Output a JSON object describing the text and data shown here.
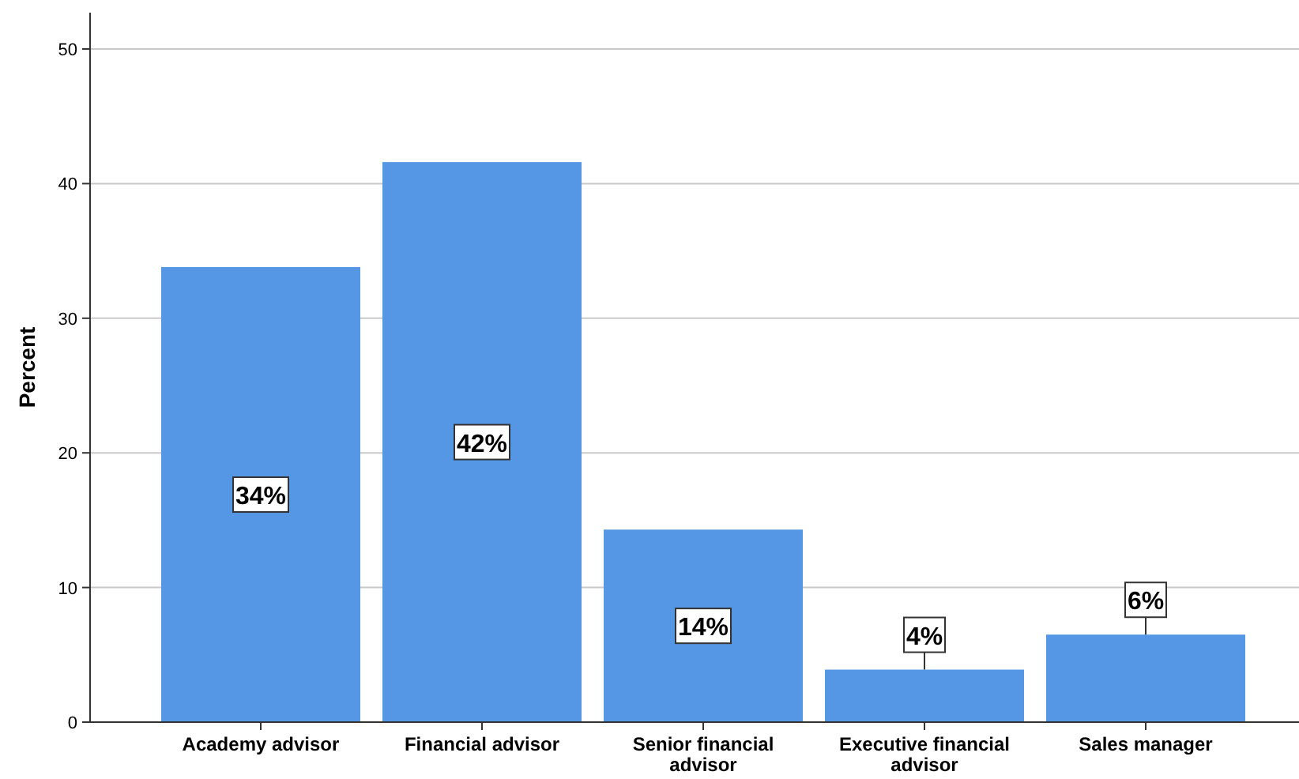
{
  "chart_data": {
    "type": "bar",
    "ylabel": "Percent",
    "categories": [
      "Academy advisor",
      "Financial advisor",
      "Senior financial advisor",
      "Executive financial advisor",
      "Sales manager"
    ],
    "values": [
      33.8,
      41.6,
      14.3,
      3.9,
      6.5
    ],
    "value_labels": [
      "34%",
      "42%",
      "14%",
      "4%",
      "6%"
    ],
    "color": "#5596e5",
    "ylim": [
      0,
      52.7
    ],
    "yticks": [
      0,
      10,
      20,
      30,
      40,
      50
    ],
    "grid": "y"
  }
}
